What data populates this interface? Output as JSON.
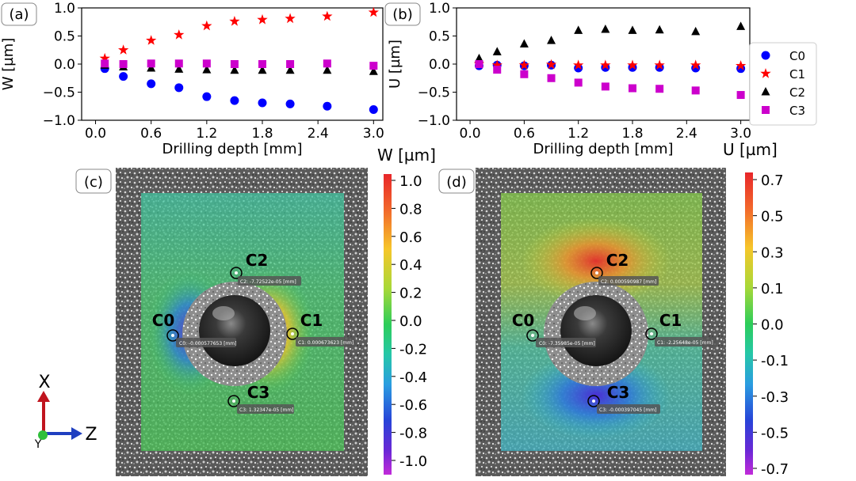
{
  "panels": {
    "a": "(a)",
    "b": "(b)",
    "c": "(c)",
    "d": "(d)"
  },
  "chart_data": [
    {
      "type": "scatter",
      "panel": "(a)",
      "ylabel": "W [µm]",
      "xlabel": "Drilling depth [mm]",
      "xlim": [
        -0.15,
        3.1
      ],
      "ylim": [
        -1.0,
        1.0
      ],
      "xticks": [
        "0.0",
        "0.6",
        "1.2",
        "1.8",
        "2.4",
        "3.0"
      ],
      "xtick_values": [
        0.0,
        0.6,
        1.2,
        1.8,
        2.4,
        3.0
      ],
      "yticks": [
        "1.0",
        "0.5",
        "0.0",
        "−0.5",
        "−1.0"
      ],
      "ytick_values": [
        1.0,
        0.5,
        0.0,
        -0.5,
        -1.0
      ],
      "x": [
        0.1,
        0.3,
        0.6,
        0.9,
        1.2,
        1.5,
        1.8,
        2.1,
        2.5,
        3.0
      ],
      "series": [
        {
          "name": "C0",
          "color": "#0000ff",
          "marker": "circle",
          "values": [
            -0.08,
            -0.22,
            -0.35,
            -0.42,
            -0.58,
            -0.65,
            -0.69,
            -0.71,
            -0.75,
            -0.81
          ]
        },
        {
          "name": "C1",
          "color": "#ff0000",
          "marker": "star",
          "values": [
            0.1,
            0.25,
            0.42,
            0.52,
            0.68,
            0.76,
            0.79,
            0.81,
            0.85,
            0.92
          ]
        },
        {
          "name": "C2",
          "color": "#000000",
          "marker": "triangle",
          "values": [
            -0.02,
            -0.05,
            -0.07,
            -0.09,
            -0.1,
            -0.11,
            -0.11,
            -0.11,
            -0.11,
            -0.13
          ]
        },
        {
          "name": "C3",
          "color": "#cc00cc",
          "marker": "square",
          "values": [
            0.01,
            0.0,
            0.01,
            0.01,
            0.01,
            0.0,
            0.0,
            0.0,
            0.01,
            -0.03
          ]
        }
      ]
    },
    {
      "type": "scatter",
      "panel": "(b)",
      "ylabel": "U [µm]",
      "xlabel": "Drilling depth [mm]",
      "xlim": [
        -0.15,
        3.1
      ],
      "ylim": [
        -1.0,
        1.0
      ],
      "xticks": [
        "0.0",
        "0.6",
        "1.2",
        "1.8",
        "2.4",
        "3.0"
      ],
      "xtick_values": [
        0.0,
        0.6,
        1.2,
        1.8,
        2.4,
        3.0
      ],
      "yticks": [
        "1.0",
        "0.5",
        "0.0",
        "−0.5",
        "−1.0"
      ],
      "ytick_values": [
        1.0,
        0.5,
        0.0,
        -0.5,
        -1.0
      ],
      "x": [
        0.1,
        0.3,
        0.6,
        0.9,
        1.2,
        1.5,
        1.8,
        2.1,
        2.5,
        3.0
      ],
      "series": [
        {
          "name": "C0",
          "color": "#0000ff",
          "marker": "circle",
          "values": [
            -0.03,
            -0.02,
            -0.03,
            -0.02,
            -0.07,
            -0.06,
            -0.06,
            -0.06,
            -0.07,
            -0.08
          ]
        },
        {
          "name": "C1",
          "color": "#ff0000",
          "marker": "star",
          "values": [
            0.0,
            -0.02,
            -0.02,
            -0.01,
            -0.02,
            -0.02,
            -0.02,
            -0.02,
            -0.02,
            -0.03
          ]
        },
        {
          "name": "C2",
          "color": "#000000",
          "marker": "triangle",
          "values": [
            0.1,
            0.22,
            0.36,
            0.42,
            0.6,
            0.62,
            0.6,
            0.61,
            0.58,
            0.67
          ]
        },
        {
          "name": "C3",
          "color": "#cc00cc",
          "marker": "square",
          "values": [
            0.0,
            -0.1,
            -0.18,
            -0.25,
            -0.33,
            -0.4,
            -0.43,
            -0.44,
            -0.47,
            -0.55
          ]
        }
      ]
    }
  ],
  "legend": [
    {
      "name": "C0",
      "color": "#0000ff",
      "marker": "circle"
    },
    {
      "name": "C1",
      "color": "#ff0000",
      "marker": "star"
    },
    {
      "name": "C2",
      "color": "#000000",
      "marker": "triangle"
    },
    {
      "name": "C3",
      "color": "#cc00cc",
      "marker": "square"
    }
  ],
  "maps": {
    "c": {
      "title": "W [µm]",
      "colorbar_ticks": [
        "1.0",
        "0.8",
        "0.6",
        "0.4",
        "0.2",
        "0.0",
        "-0.2",
        "-0.4",
        "-0.6",
        "-0.8",
        "-1.0"
      ],
      "points": [
        {
          "label": "C0",
          "readout": "C0: -0.000577653 [mm]"
        },
        {
          "label": "C1",
          "readout": "C1: 0.000673623 [mm]"
        },
        {
          "label": "C2",
          "readout": "C2: -7.72522e-05 [mm]"
        },
        {
          "label": "C3",
          "readout": "C3: 1.32347e-05 [mm]"
        }
      ]
    },
    "d": {
      "title": "U [µm]",
      "colorbar_ticks": [
        "0.7",
        "0.5",
        "0.3",
        "0.1",
        "0.0",
        "-0.1",
        "-0.3",
        "-0.5",
        "-0.7"
      ],
      "points": [
        {
          "label": "C0",
          "readout": "C0: -7.35985e-05 [mm]"
        },
        {
          "label": "C1",
          "readout": "C1: -2.25648e-05 [mm]"
        },
        {
          "label": "C2",
          "readout": "C2: 0.000590987 [mm]"
        },
        {
          "label": "C3",
          "readout": "C3: -0.000397045 [mm]"
        }
      ]
    }
  },
  "axes_triad": {
    "x_label": "X",
    "z_label": "Z",
    "y_label": "Y"
  }
}
